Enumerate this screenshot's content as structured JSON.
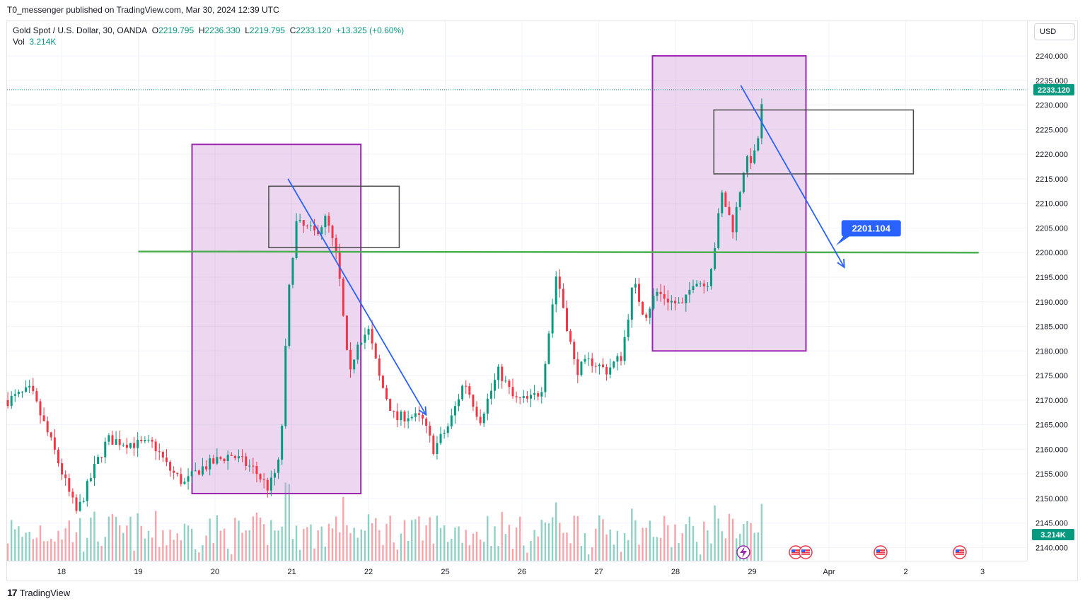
{
  "publisher_line": "T0_messenger published on TradingView.com, Mar 30, 2024 12:39 UTC",
  "legend": {
    "symbol": "Gold Spot / U.S. Dollar, 30, OANDA",
    "o_label": "O",
    "o_value": "2219.795",
    "h_label": "H",
    "h_value": "2236.330",
    "l_label": "L",
    "l_value": "2219.795",
    "c_label": "C",
    "c_value": "2233.120",
    "change": "+13.325 (+0.60%)",
    "vol_label": "Vol",
    "vol_value": "3.214K"
  },
  "currency_button": "USD",
  "price_badge": "2233.120",
  "volume_badge": "3.214K",
  "target_label": "2201.104",
  "footer_brand": "TradingView",
  "colors": {
    "up": "#089981",
    "down": "#f23645",
    "zone_fill": "#e1bee7",
    "zone_border": "#9c27b0",
    "support_line": "#4caf50",
    "arrow": "#2962ff",
    "grid": "#f0f3fa"
  },
  "chart_data": {
    "type": "candlestick",
    "title": "Gold Spot / U.S. Dollar, 30, OANDA",
    "y_axis": {
      "min": 2137,
      "max": 2242,
      "ticks": [
        2140,
        2145,
        2150,
        2155,
        2160,
        2165,
        2170,
        2175,
        2180,
        2185,
        2190,
        2195,
        2200,
        2205,
        2210,
        2215,
        2220,
        2225,
        2230,
        2235,
        2240
      ],
      "tick_labels": [
        "2140.000",
        "2145.000",
        "2150.000",
        "2155.000",
        "2160.000",
        "2165.000",
        "2170.000",
        "2175.000",
        "2180.000",
        "2185.000",
        "2190.000",
        "2195.000",
        "2200.000",
        "2205.000",
        "2210.000",
        "2215.000",
        "2220.000",
        "2225.000",
        "2230.000",
        "2235.000",
        "2240.000"
      ]
    },
    "x_axis": {
      "labels": [
        "18",
        "19",
        "20",
        "21",
        "22",
        "25",
        "26",
        "27",
        "28",
        "29",
        "Apr",
        "2",
        "3"
      ]
    },
    "price_anchors": [
      {
        "day": 17.3,
        "price": 2170
      },
      {
        "day": 17.6,
        "price": 2172
      },
      {
        "day": 17.9,
        "price": 2160
      },
      {
        "day": 18.1,
        "price": 2151
      },
      {
        "day": 18.2,
        "price": 2147
      },
      {
        "day": 18.45,
        "price": 2157
      },
      {
        "day": 18.6,
        "price": 2162
      },
      {
        "day": 19.0,
        "price": 2161
      },
      {
        "day": 19.2,
        "price": 2161
      },
      {
        "day": 19.4,
        "price": 2156
      },
      {
        "day": 19.6,
        "price": 2153
      },
      {
        "day": 19.8,
        "price": 2156
      },
      {
        "day": 20.2,
        "price": 2159
      },
      {
        "day": 20.5,
        "price": 2156
      },
      {
        "day": 20.7,
        "price": 2152
      },
      {
        "day": 20.85,
        "price": 2158
      },
      {
        "day": 20.95,
        "price": 2190
      },
      {
        "day": 21.05,
        "price": 2206
      },
      {
        "day": 21.3,
        "price": 2204
      },
      {
        "day": 21.45,
        "price": 2207
      },
      {
        "day": 21.6,
        "price": 2198
      },
      {
        "day": 21.75,
        "price": 2174
      },
      {
        "day": 21.85,
        "price": 2182
      },
      {
        "day": 22.0,
        "price": 2184
      },
      {
        "day": 22.15,
        "price": 2174
      },
      {
        "day": 22.35,
        "price": 2166
      },
      {
        "day": 22.5,
        "price": 2167
      },
      {
        "day": 22.7,
        "price": 2166
      },
      {
        "day": 22.85,
        "price": 2160
      },
      {
        "day": 23.05,
        "price": 2165
      },
      {
        "day": 23.25,
        "price": 2174
      },
      {
        "day": 23.45,
        "price": 2166
      },
      {
        "day": 23.7,
        "price": 2176
      },
      {
        "day": 23.9,
        "price": 2170
      },
      {
        "day": 24.1,
        "price": 2170
      },
      {
        "day": 24.25,
        "price": 2172
      },
      {
        "day": 24.45,
        "price": 2196
      },
      {
        "day": 24.6,
        "price": 2184
      },
      {
        "day": 24.7,
        "price": 2176
      },
      {
        "day": 24.9,
        "price": 2178
      },
      {
        "day": 25.1,
        "price": 2176
      },
      {
        "day": 25.3,
        "price": 2179
      },
      {
        "day": 25.45,
        "price": 2194
      },
      {
        "day": 25.6,
        "price": 2187
      },
      {
        "day": 25.75,
        "price": 2192
      },
      {
        "day": 25.95,
        "price": 2190
      },
      {
        "day": 26.1,
        "price": 2189
      },
      {
        "day": 26.25,
        "price": 2195
      },
      {
        "day": 26.4,
        "price": 2193
      },
      {
        "day": 26.5,
        "price": 2200
      },
      {
        "day": 26.6,
        "price": 2212
      },
      {
        "day": 26.75,
        "price": 2205
      },
      {
        "day": 26.9,
        "price": 2218
      },
      {
        "day": 27.05,
        "price": 2220
      },
      {
        "day": 27.15,
        "price": 2233
      }
    ],
    "volume": {
      "latest": "3.214K"
    },
    "annotations": [
      {
        "type": "support_line",
        "price": 2200
      },
      {
        "type": "zone",
        "from_day": 19.7,
        "to_day": 21.9,
        "price_top": 2222,
        "price_bottom": 2151
      },
      {
        "type": "zone",
        "from_day": 25.7,
        "to_day": 27.7,
        "price_top": 2240,
        "price_bottom": 2180
      },
      {
        "type": "box",
        "from_day": 20.7,
        "to_day": 22.4,
        "price_top": 2213.5,
        "price_bottom": 2201
      },
      {
        "type": "box",
        "from_day": 26.5,
        "to_day": 29.1,
        "price_top": 2229,
        "price_bottom": 2216
      },
      {
        "type": "arrow",
        "from_day": 20.95,
        "from_price": 2215,
        "to_day": 22.75,
        "to_price": 2167
      },
      {
        "type": "arrow",
        "from_day": 26.85,
        "from_price": 2234,
        "to_day": 28.2,
        "to_price": 2197
      },
      {
        "type": "label",
        "text": "2201.104",
        "day": 28.55,
        "price": 2205
      }
    ]
  }
}
